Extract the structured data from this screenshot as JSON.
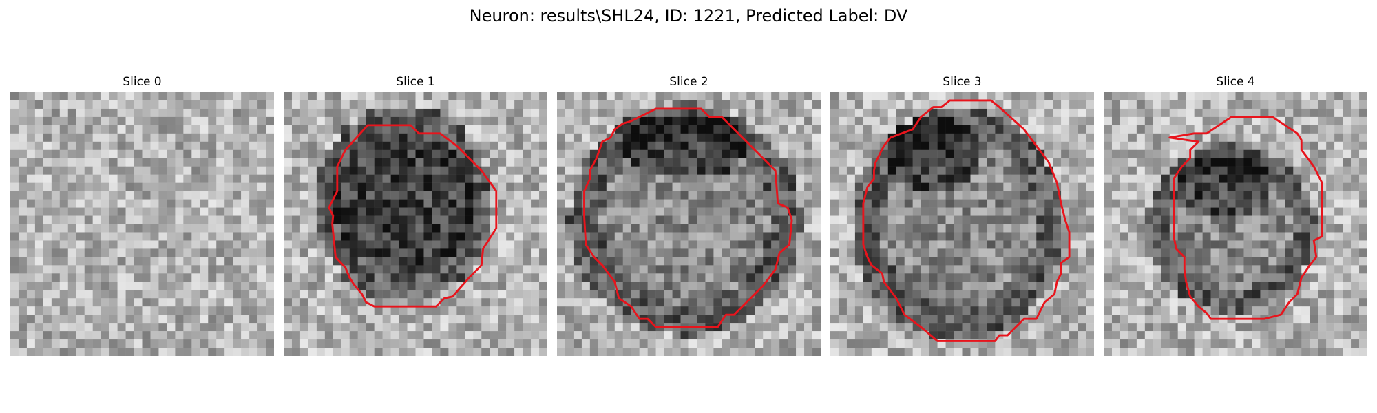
{
  "title": "Neuron: results\\SHL24, ID: 1221, Predicted Label: DV",
  "image_grid": 32,
  "contour_color": "#e8141c",
  "slices": [
    {
      "title": "Slice 0"
    },
    {
      "title": "Slice 1"
    },
    {
      "title": "Slice 2"
    },
    {
      "title": "Slice 3"
    },
    {
      "title": "Slice 4"
    }
  ]
}
